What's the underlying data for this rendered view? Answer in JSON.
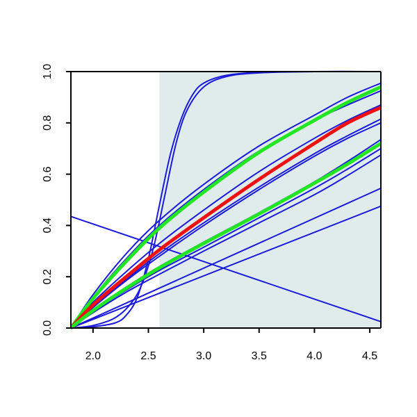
{
  "chart_data": {
    "type": "line",
    "title": "",
    "xlabel": "",
    "ylabel": "",
    "xlim": [
      1.8,
      4.6
    ],
    "ylim": [
      0.0,
      1.0
    ],
    "x_ticks": [
      "2.0",
      "2.5",
      "3.0",
      "3.5",
      "4.0",
      "4.5"
    ],
    "y_ticks": [
      "0.0",
      "0.2",
      "0.4",
      "0.6",
      "0.8",
      "1.0"
    ],
    "shaded_region": {
      "x_start": 2.6,
      "x_end": 4.6,
      "color": "#e0ecec"
    },
    "grid": false,
    "legend": "none",
    "colors": {
      "blue": "#1a1ad8",
      "green": "#22e622",
      "red": "#ee1111",
      "shade": "#e0ecec",
      "axis": "#000000"
    },
    "series": [
      {
        "color_key": "blue",
        "width": "thin",
        "points": [
          [
            1.8,
            0.0
          ],
          [
            2.0,
            0.005
          ],
          [
            2.2,
            0.02
          ],
          [
            2.3,
            0.05
          ],
          [
            2.4,
            0.12
          ],
          [
            2.5,
            0.27
          ],
          [
            2.6,
            0.48
          ],
          [
            2.7,
            0.68
          ],
          [
            2.8,
            0.82
          ],
          [
            2.9,
            0.91
          ],
          [
            3.0,
            0.955
          ],
          [
            3.2,
            0.985
          ],
          [
            3.5,
            0.997
          ],
          [
            4.0,
            1.0
          ],
          [
            4.6,
            1.0
          ]
        ]
      },
      {
        "color_key": "blue",
        "width": "thin",
        "points": [
          [
            1.8,
            0.0
          ],
          [
            2.0,
            0.01
          ],
          [
            2.2,
            0.04
          ],
          [
            2.35,
            0.1
          ],
          [
            2.45,
            0.18
          ],
          [
            2.55,
            0.32
          ],
          [
            2.65,
            0.52
          ],
          [
            2.75,
            0.72
          ],
          [
            2.85,
            0.85
          ],
          [
            3.0,
            0.94
          ],
          [
            3.2,
            0.98
          ],
          [
            3.5,
            0.995
          ],
          [
            4.0,
            1.0
          ],
          [
            4.6,
            1.0
          ]
        ]
      },
      {
        "color_key": "blue",
        "width": "thin",
        "points": [
          [
            1.8,
            0.0
          ],
          [
            2.0,
            0.13
          ],
          [
            2.3,
            0.29
          ],
          [
            2.6,
            0.42
          ],
          [
            3.0,
            0.56
          ],
          [
            3.5,
            0.71
          ],
          [
            4.0,
            0.83
          ],
          [
            4.3,
            0.9
          ],
          [
            4.6,
            0.955
          ]
        ]
      },
      {
        "color_key": "blue",
        "width": "thin",
        "points": [
          [
            1.8,
            0.0
          ],
          [
            2.0,
            0.12
          ],
          [
            2.3,
            0.27
          ],
          [
            2.6,
            0.4
          ],
          [
            3.0,
            0.54
          ],
          [
            3.5,
            0.69
          ],
          [
            4.0,
            0.81
          ],
          [
            4.3,
            0.87
          ],
          [
            4.6,
            0.925
          ]
        ]
      },
      {
        "color_key": "green",
        "width": "thick",
        "points": [
          [
            1.8,
            0.0
          ],
          [
            2.0,
            0.115
          ],
          [
            2.3,
            0.26
          ],
          [
            2.6,
            0.39
          ],
          [
            3.0,
            0.53
          ],
          [
            3.5,
            0.685
          ],
          [
            4.0,
            0.81
          ],
          [
            4.3,
            0.88
          ],
          [
            4.6,
            0.94
          ]
        ]
      },
      {
        "color_key": "blue",
        "width": "thin",
        "points": [
          [
            1.8,
            0.0
          ],
          [
            2.0,
            0.1
          ],
          [
            2.3,
            0.22
          ],
          [
            2.6,
            0.33
          ],
          [
            3.0,
            0.46
          ],
          [
            3.5,
            0.61
          ],
          [
            4.0,
            0.74
          ],
          [
            4.3,
            0.81
          ],
          [
            4.6,
            0.87
          ]
        ]
      },
      {
        "color_key": "red",
        "width": "thick",
        "points": [
          [
            1.8,
            0.0
          ],
          [
            2.0,
            0.09
          ],
          [
            2.3,
            0.2
          ],
          [
            2.6,
            0.305
          ],
          [
            3.0,
            0.43
          ],
          [
            3.5,
            0.58
          ],
          [
            4.0,
            0.72
          ],
          [
            4.3,
            0.8
          ],
          [
            4.6,
            0.86
          ]
        ]
      },
      {
        "color_key": "blue",
        "width": "thin",
        "points": [
          [
            1.8,
            0.0
          ],
          [
            2.0,
            0.085
          ],
          [
            2.3,
            0.19
          ],
          [
            2.6,
            0.29
          ],
          [
            3.0,
            0.41
          ],
          [
            3.5,
            0.55
          ],
          [
            4.0,
            0.68
          ],
          [
            4.3,
            0.75
          ],
          [
            4.6,
            0.815
          ]
        ]
      },
      {
        "color_key": "blue",
        "width": "thin",
        "points": [
          [
            1.8,
            0.0
          ],
          [
            2.0,
            0.08
          ],
          [
            2.3,
            0.185
          ],
          [
            2.6,
            0.28
          ],
          [
            3.0,
            0.4
          ],
          [
            3.5,
            0.54
          ],
          [
            4.0,
            0.67
          ],
          [
            4.3,
            0.74
          ],
          [
            4.6,
            0.8
          ]
        ]
      },
      {
        "color_key": "blue",
        "width": "thin",
        "points": [
          [
            1.8,
            0.0
          ],
          [
            2.0,
            0.07
          ],
          [
            2.3,
            0.16
          ],
          [
            2.6,
            0.24
          ],
          [
            3.0,
            0.335
          ],
          [
            3.5,
            0.45
          ],
          [
            4.0,
            0.57
          ],
          [
            4.3,
            0.65
          ],
          [
            4.6,
            0.735
          ]
        ]
      },
      {
        "color_key": "green",
        "width": "thick",
        "points": [
          [
            1.8,
            0.0
          ],
          [
            2.0,
            0.068
          ],
          [
            2.3,
            0.155
          ],
          [
            2.6,
            0.235
          ],
          [
            3.0,
            0.33
          ],
          [
            3.5,
            0.445
          ],
          [
            4.0,
            0.565
          ],
          [
            4.3,
            0.64
          ],
          [
            4.6,
            0.72
          ]
        ]
      },
      {
        "color_key": "blue",
        "width": "thin",
        "points": [
          [
            1.8,
            0.0
          ],
          [
            2.0,
            0.065
          ],
          [
            2.3,
            0.148
          ],
          [
            2.6,
            0.225
          ],
          [
            3.0,
            0.315
          ],
          [
            3.5,
            0.43
          ],
          [
            4.0,
            0.545
          ],
          [
            4.3,
            0.62
          ],
          [
            4.6,
            0.7
          ]
        ]
      },
      {
        "color_key": "blue",
        "width": "thin",
        "points": [
          [
            1.8,
            0.0
          ],
          [
            2.0,
            0.06
          ],
          [
            2.3,
            0.14
          ],
          [
            2.6,
            0.21
          ],
          [
            3.0,
            0.3
          ],
          [
            3.5,
            0.41
          ],
          [
            4.0,
            0.52
          ],
          [
            4.3,
            0.595
          ],
          [
            4.6,
            0.675
          ]
        ]
      },
      {
        "color_key": "blue",
        "width": "thin",
        "points": [
          [
            1.8,
            0.0
          ],
          [
            4.6,
            0.545
          ]
        ]
      },
      {
        "color_key": "blue",
        "width": "thin",
        "points": [
          [
            1.8,
            0.0
          ],
          [
            4.6,
            0.475
          ]
        ]
      },
      {
        "color_key": "blue",
        "width": "thin",
        "points": [
          [
            1.8,
            0.435
          ],
          [
            4.6,
            0.025
          ]
        ]
      }
    ]
  }
}
